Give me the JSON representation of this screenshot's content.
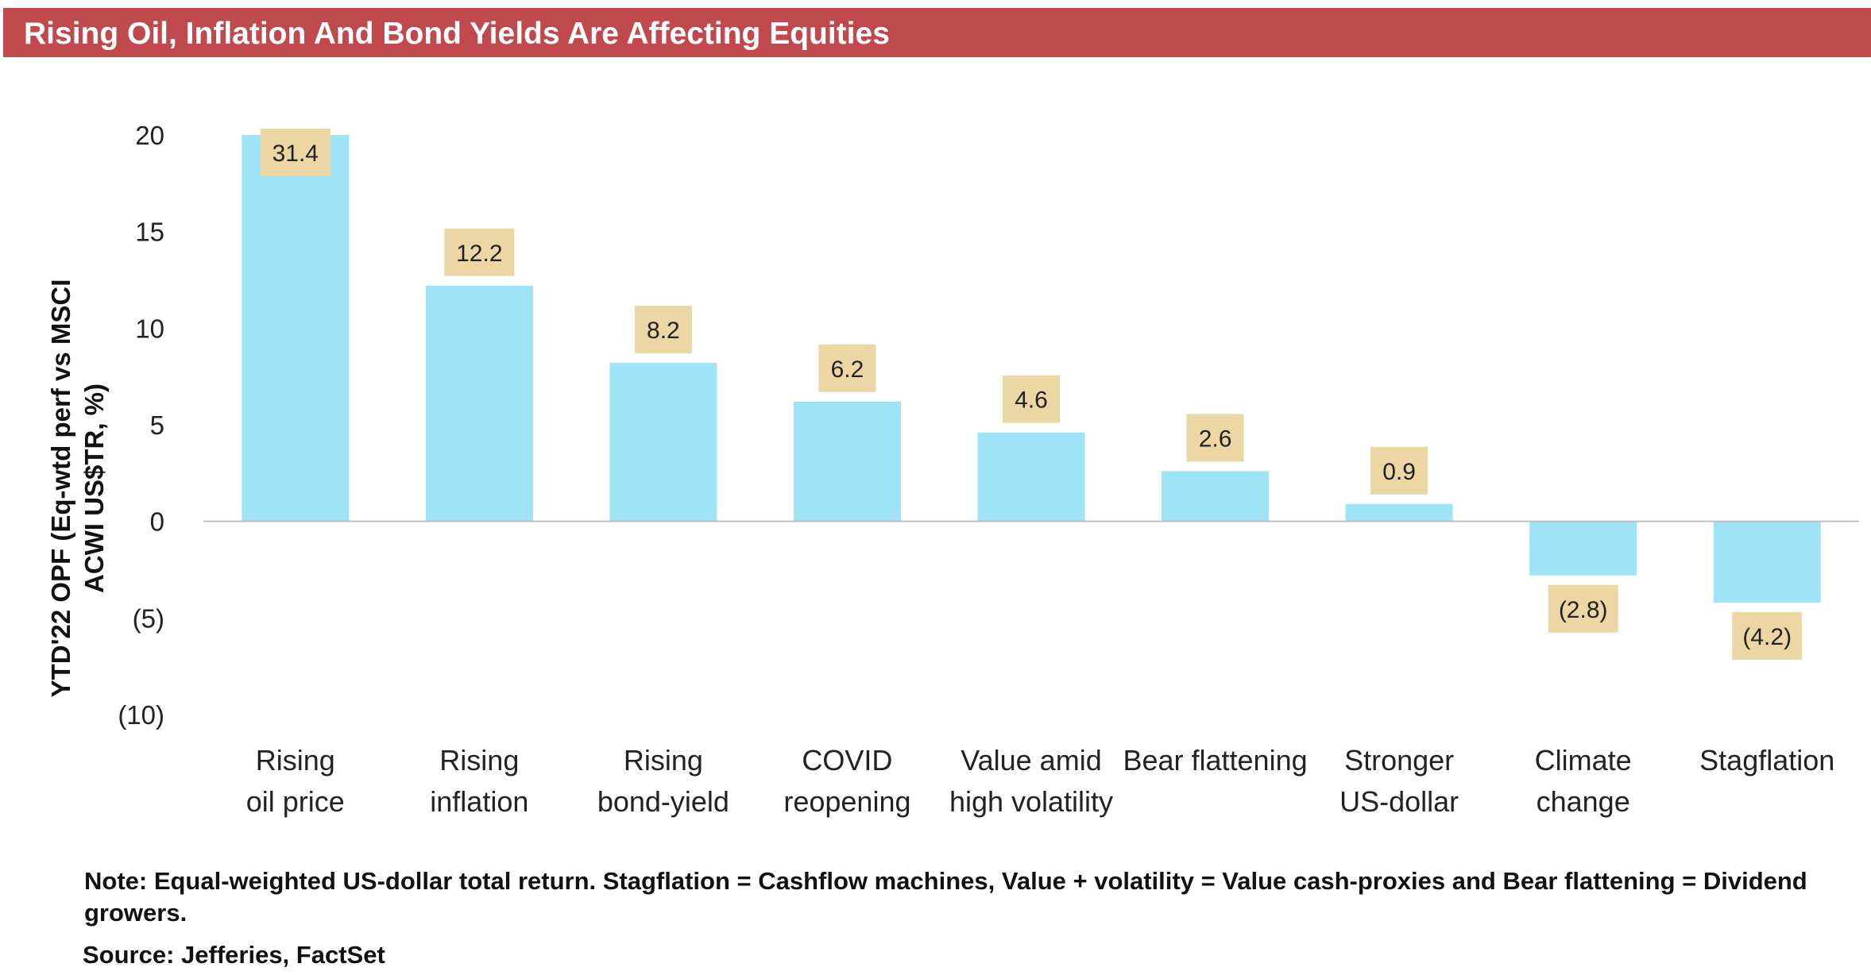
{
  "header": {
    "title": "Rising Oil, Inflation And Bond Yields Are Affecting Equities"
  },
  "chart_data": {
    "type": "bar",
    "categories": [
      [
        "Rising",
        "oil price"
      ],
      [
        "Rising",
        "inflation"
      ],
      [
        "Rising",
        "bond-yield"
      ],
      [
        "COVID",
        "reopening"
      ],
      [
        "Value amid",
        "high volatility"
      ],
      [
        "Bear flattening"
      ],
      [
        "Stronger",
        "US-dollar"
      ],
      [
        "Climate",
        "change"
      ],
      [
        "Stagflation"
      ]
    ],
    "values": [
      31.4,
      12.2,
      8.2,
      6.2,
      4.6,
      2.6,
      0.9,
      -2.8,
      -4.2
    ],
    "data_labels": [
      "31.4",
      "12.2",
      "8.2",
      "6.2",
      "4.6",
      "2.6",
      "0.9",
      "(2.8)",
      "(4.2)"
    ],
    "ylabel": [
      "YTD'22 OPF (Eq-wtd perf vs MSCI",
      "ACWI US$TR, %)"
    ],
    "ylim": [
      -10,
      20
    ],
    "yticks": [
      20,
      15,
      10,
      5,
      0,
      -5,
      -10
    ],
    "ytick_labels": [
      "20",
      "15",
      "10",
      "5",
      "0",
      "(5)",
      "(10)"
    ],
    "bars_clipped_at_axis_max": true,
    "grid": false,
    "legend": "none",
    "colors": {
      "bar": "#9fe3f6",
      "label_box": "#ecd6a4",
      "zero_line": "#bfbfbf",
      "title_bar": "#c0494e"
    }
  },
  "footer": {
    "note": "Note: Equal-weighted US-dollar total return. Stagflation = Cashflow machines, Value + volatility = Value cash-proxies and Bear flattening = Dividend growers.",
    "source": "Source: Jefferies, FactSet"
  }
}
